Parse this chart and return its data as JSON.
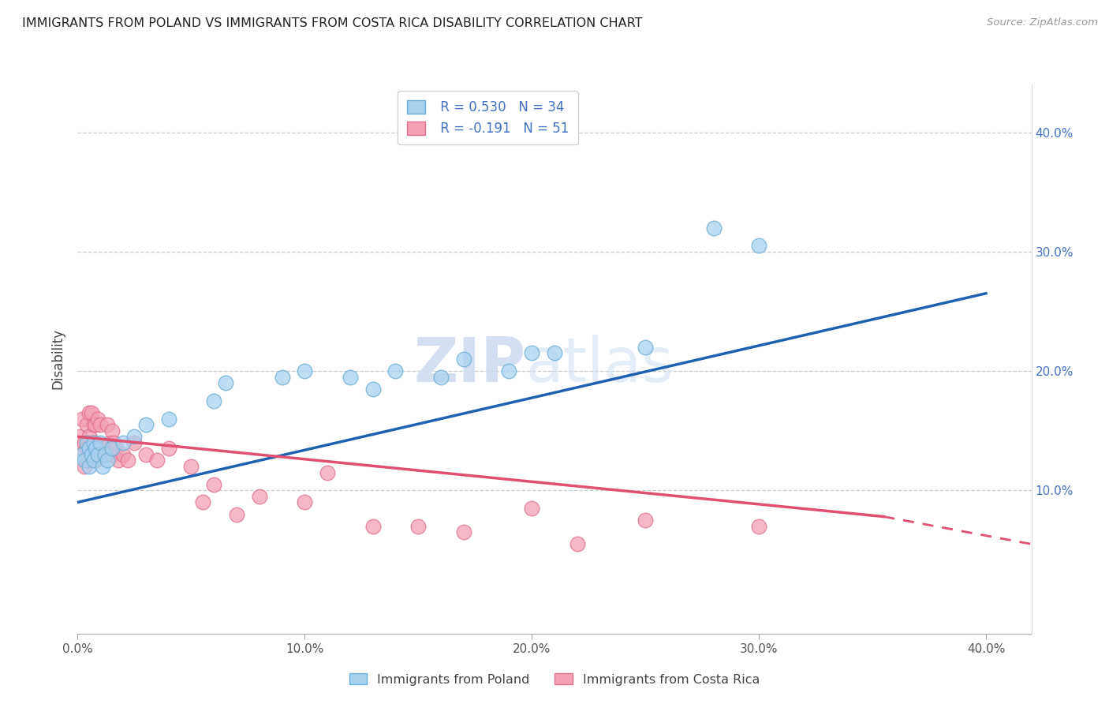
{
  "title": "IMMIGRANTS FROM POLAND VS IMMIGRANTS FROM COSTA RICA DISABILITY CORRELATION CHART",
  "source": "Source: ZipAtlas.com",
  "ylabel": "Disability",
  "xlim": [
    0.0,
    0.42
  ],
  "ylim": [
    -0.02,
    0.44
  ],
  "yticks": [
    0.1,
    0.2,
    0.3,
    0.4
  ],
  "ytick_labels": [
    "10.0%",
    "20.0%",
    "30.0%",
    "40.0%"
  ],
  "xticks": [
    0.0,
    0.1,
    0.2,
    0.3,
    0.4
  ],
  "xtick_labels": [
    "0.0%",
    "10.0%",
    "20.0%",
    "30.0%",
    "40.0%"
  ],
  "watermark_zip": "ZIP",
  "watermark_atlas": "atlas",
  "poland_color_fill": "#a8d1f0",
  "poland_edge": "#6baed6",
  "costa_rica_color": "#f4a0b5",
  "costa_rica_edge": "#e07090",
  "trend_poland_color": "#2060b0",
  "trend_costa_rica_color": "#e05070",
  "R_poland": 0.53,
  "N_poland": 34,
  "R_costa_rica": -0.191,
  "N_costa_rica": 51,
  "legend_label_poland": "Immigrants from Poland",
  "legend_label_costa_rica": "Immigrants from Costa Rica",
  "poland_x": [
    0.002,
    0.003,
    0.004,
    0.005,
    0.005,
    0.006,
    0.007,
    0.007,
    0.008,
    0.009,
    0.01,
    0.011,
    0.012,
    0.013,
    0.015,
    0.02,
    0.025,
    0.03,
    0.04,
    0.06,
    0.065,
    0.09,
    0.1,
    0.12,
    0.13,
    0.14,
    0.16,
    0.17,
    0.19,
    0.2,
    0.21,
    0.25,
    0.28,
    0.3
  ],
  "poland_y": [
    0.13,
    0.125,
    0.14,
    0.12,
    0.135,
    0.13,
    0.125,
    0.14,
    0.135,
    0.13,
    0.14,
    0.12,
    0.13,
    0.125,
    0.135,
    0.14,
    0.145,
    0.155,
    0.16,
    0.175,
    0.19,
    0.195,
    0.2,
    0.195,
    0.185,
    0.2,
    0.195,
    0.21,
    0.2,
    0.215,
    0.215,
    0.22,
    0.32,
    0.305
  ],
  "costa_rica_x": [
    0.001,
    0.002,
    0.002,
    0.003,
    0.003,
    0.004,
    0.004,
    0.004,
    0.005,
    0.005,
    0.005,
    0.006,
    0.006,
    0.007,
    0.007,
    0.008,
    0.008,
    0.008,
    0.009,
    0.009,
    0.01,
    0.01,
    0.011,
    0.012,
    0.013,
    0.014,
    0.015,
    0.015,
    0.016,
    0.017,
    0.018,
    0.02,
    0.022,
    0.025,
    0.03,
    0.035,
    0.04,
    0.05,
    0.055,
    0.06,
    0.07,
    0.08,
    0.1,
    0.11,
    0.13,
    0.15,
    0.17,
    0.2,
    0.22,
    0.25,
    0.3
  ],
  "costa_rica_y": [
    0.145,
    0.16,
    0.135,
    0.14,
    0.12,
    0.155,
    0.135,
    0.125,
    0.165,
    0.145,
    0.125,
    0.165,
    0.14,
    0.155,
    0.135,
    0.155,
    0.14,
    0.125,
    0.16,
    0.13,
    0.155,
    0.135,
    0.13,
    0.135,
    0.155,
    0.14,
    0.15,
    0.13,
    0.14,
    0.135,
    0.125,
    0.13,
    0.125,
    0.14,
    0.13,
    0.125,
    0.135,
    0.12,
    0.09,
    0.105,
    0.08,
    0.095,
    0.09,
    0.115,
    0.07,
    0.07,
    0.065,
    0.085,
    0.055,
    0.075,
    0.07
  ],
  "trend_poland_x0": 0.0,
  "trend_poland_x1": 0.4,
  "trend_poland_y0": 0.09,
  "trend_poland_y1": 0.265,
  "trend_cr_x0": 0.0,
  "trend_cr_x1": 0.355,
  "trend_cr_y0": 0.145,
  "trend_cr_y1": 0.078,
  "trend_cr_dash_x0": 0.355,
  "trend_cr_dash_x1": 0.42,
  "trend_cr_dash_y0": 0.078,
  "trend_cr_dash_y1": 0.055
}
